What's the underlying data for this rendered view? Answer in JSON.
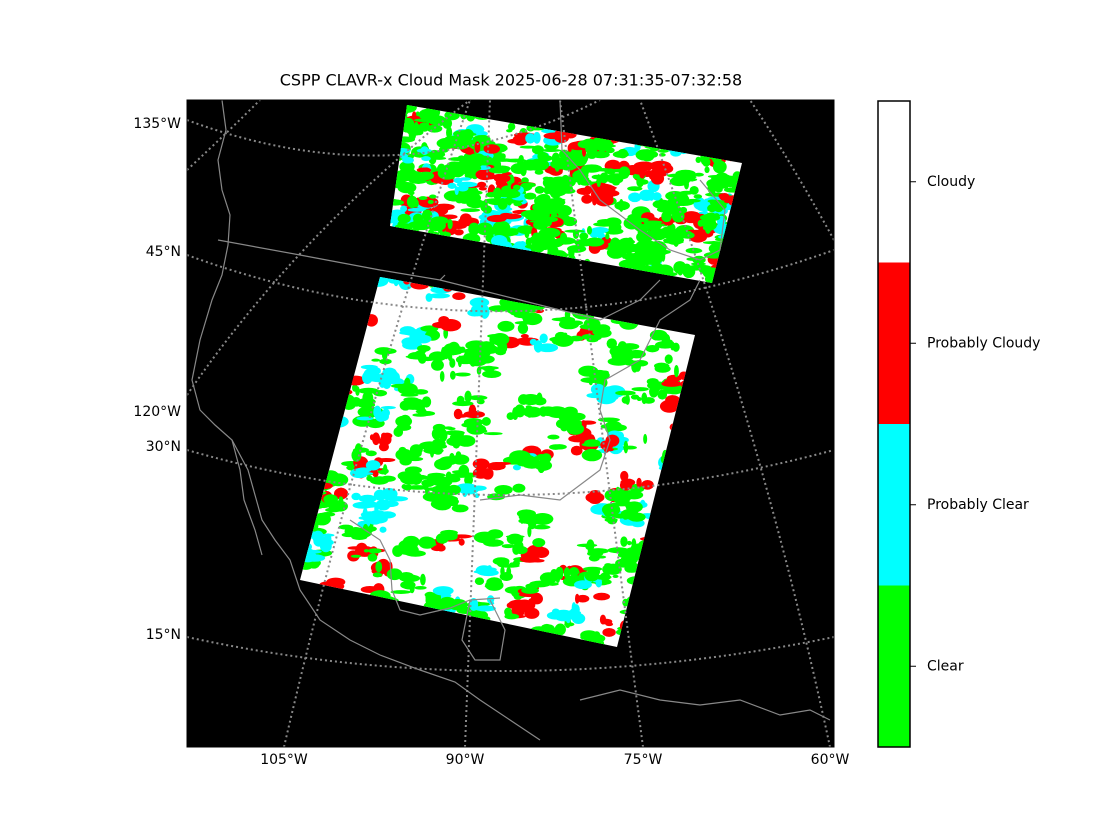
{
  "title": "CSPP CLAVR-x Cloud Mask 2025-06-28 07:31:35-07:32:58",
  "map": {
    "lat_labels": [
      "135°W",
      "45°N",
      "120°W",
      "30°N",
      "15°N"
    ],
    "lon_labels": [
      "105°W",
      "90°W",
      "75°W",
      "60°W"
    ]
  },
  "colorbar": {
    "classes": [
      {
        "name": "Clear",
        "color": "#00ff00"
      },
      {
        "name": "Probably Clear",
        "color": "#00ffff"
      },
      {
        "name": "Probably Cloudy",
        "color": "#ff0000"
      },
      {
        "name": "Cloudy",
        "color": "#ffffff"
      }
    ]
  }
}
